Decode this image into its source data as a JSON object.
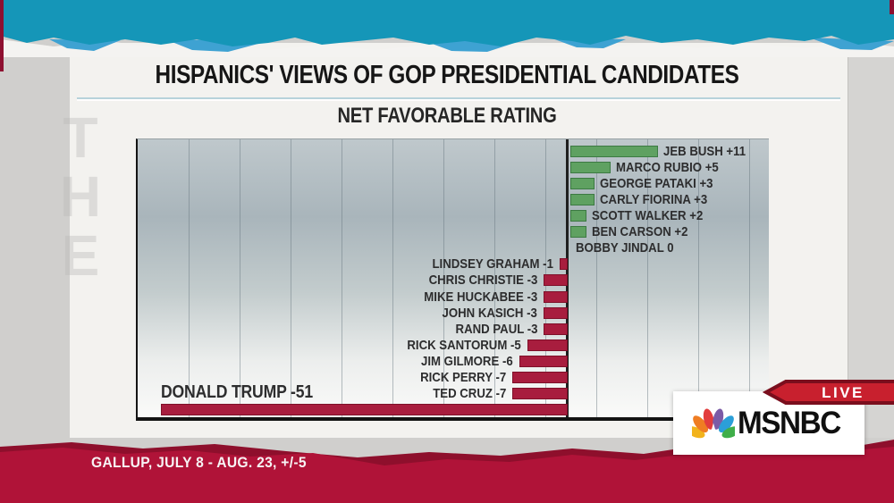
{
  "header": {
    "title": "HISPANICS' VIEWS OF GOP PRESIDENTIAL CANDIDATES",
    "subtitle": "NET FAVORABLE RATING"
  },
  "chart_data": {
    "type": "bar",
    "orientation": "horizontal",
    "title": "HISPANICS' VIEWS OF GOP PRESIDENTIAL CANDIDATES",
    "subtitle": "NET FAVORABLE RATING",
    "value_label": "Net favorable rating (percentage points)",
    "categories": [
      "JEB BUSH",
      "MARCO RUBIO",
      "GEORGE PATAKI",
      "CARLY FIORINA",
      "SCOTT WALKER",
      "BEN CARSON",
      "BOBBY JINDAL",
      "LINDSEY GRAHAM",
      "CHRIS CHRISTIE",
      "MIKE HUCKABEE",
      "JOHN KASICH",
      "RAND PAUL",
      "RICK SANTORUM",
      "JIM GILMORE",
      "RICK PERRY",
      "TED CRUZ",
      "DONALD TRUMP"
    ],
    "values": [
      11,
      5,
      3,
      3,
      2,
      2,
      0,
      -1,
      -3,
      -3,
      -3,
      -3,
      -5,
      -6,
      -7,
      -7,
      -51
    ],
    "label_format": "signed",
    "xlim": [
      -54,
      25
    ],
    "grid": "vertical",
    "zero_axis": true,
    "legend": "none",
    "positive_color": "#5fa161",
    "negative_color": "#a81d3e"
  },
  "source_note": "GALLUP, JULY 8 - AUG. 23, +/-5",
  "broadcast": {
    "live": "LIVE",
    "network": "MSNBC"
  },
  "watermark": {
    "text": "THE"
  },
  "colors": {
    "teal_band": "#1596b8",
    "light_blue_torn": "#3ea2d2",
    "red_band": "#b01338",
    "red_band_dark": "#8e0f2c",
    "live_red": "#c8202e",
    "live_border": "#7a0e1d",
    "title_underline": "#b7d2da",
    "axis": "#1f1f1f"
  }
}
